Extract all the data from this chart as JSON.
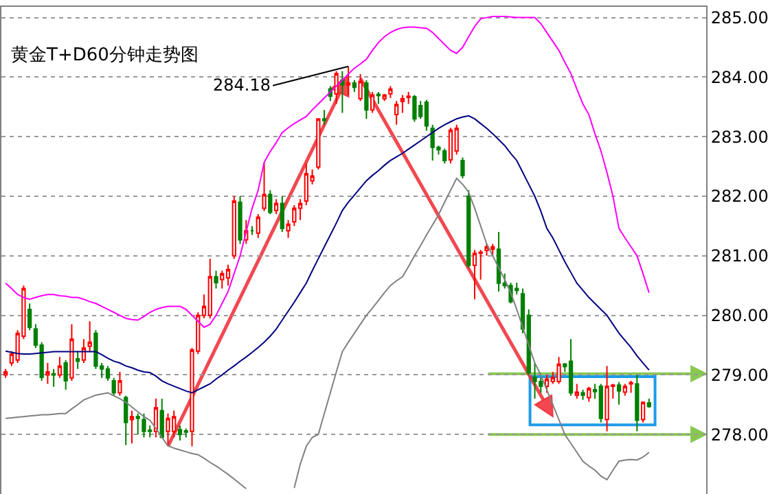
{
  "chart_data": {
    "type": "candlestick",
    "title": "黄金T+D60分钟走势图",
    "categories": [
      null,
      null,
      null,
      null,
      null,
      null,
      null,
      null,
      null,
      null,
      null,
      null,
      null,
      null,
      null,
      null,
      null,
      null,
      null,
      null,
      null,
      null,
      null,
      null,
      null,
      null,
      null,
      null,
      null,
      null,
      null,
      null,
      null,
      null,
      null,
      null,
      null,
      null,
      null,
      null,
      null,
      null,
      null,
      null,
      null,
      null,
      null,
      null,
      null,
      null,
      null,
      null,
      null,
      null,
      null,
      null,
      null,
      null,
      null,
      null,
      null,
      null,
      null,
      null,
      null,
      null,
      null,
      null,
      null,
      null,
      null,
      null,
      null,
      null,
      null,
      null,
      null,
      null,
      null,
      null,
      null,
      null,
      null,
      null,
      null,
      null,
      null,
      null,
      null,
      null,
      null,
      null,
      null,
      null,
      null,
      null,
      null,
      null,
      null,
      null,
      null,
      null,
      null,
      null,
      null,
      null,
      null,
      null
    ],
    "ohlc": [
      [
        279.0,
        279.1,
        278.95,
        279.05
      ],
      [
        279.2,
        279.4,
        279.15,
        279.35
      ],
      [
        279.25,
        279.75,
        279.2,
        279.7
      ],
      [
        279.65,
        280.5,
        279.6,
        280.45
      ],
      [
        280.1,
        280.2,
        279.75,
        279.8
      ],
      [
        279.77,
        279.85,
        279.45,
        279.5
      ],
      [
        279.5,
        279.55,
        278.9,
        278.96
      ],
      [
        279.0,
        279.2,
        278.85,
        279.05
      ],
      [
        279.02,
        279.1,
        278.8,
        279.0
      ],
      [
        279.0,
        279.3,
        278.95,
        279.15
      ],
      [
        279.2,
        279.25,
        278.75,
        278.9
      ],
      [
        278.95,
        279.85,
        278.9,
        279.6
      ],
      [
        279.27,
        279.4,
        279.1,
        279.23
      ],
      [
        279.25,
        279.6,
        279.2,
        279.45
      ],
      [
        279.48,
        279.9,
        279.4,
        279.55
      ],
      [
        279.7,
        279.75,
        279.1,
        279.15
      ],
      [
        279.15,
        279.2,
        278.95,
        279.1
      ],
      [
        279.1,
        279.15,
        278.9,
        278.95
      ],
      [
        278.9,
        278.95,
        278.65,
        278.7
      ],
      [
        278.7,
        279.05,
        278.65,
        278.9
      ],
      [
        278.62,
        278.65,
        277.82,
        278.2
      ],
      [
        278.25,
        278.4,
        277.85,
        278.3
      ],
      [
        278.3,
        278.35,
        278.0,
        278.27
      ],
      [
        278.25,
        278.35,
        277.95,
        278.05
      ],
      [
        278.07,
        278.15,
        277.95,
        278.05
      ],
      [
        278.05,
        278.6,
        277.95,
        278.45
      ],
      [
        278.4,
        278.6,
        277.95,
        277.95
      ],
      [
        278.05,
        278.35,
        277.82,
        278.27
      ],
      [
        278.05,
        278.4,
        277.95,
        278.3
      ],
      [
        278.08,
        278.15,
        277.9,
        278.0
      ],
      [
        278.06,
        278.1,
        277.95,
        278.04
      ],
      [
        278.05,
        279.45,
        277.8,
        279.42
      ],
      [
        279.4,
        280.05,
        279.35,
        280.0
      ],
      [
        280.0,
        280.35,
        279.95,
        280.15
      ],
      [
        280.0,
        280.95,
        279.95,
        280.65
      ],
      [
        280.65,
        280.75,
        280.45,
        280.55
      ],
      [
        280.6,
        280.75,
        280.45,
        280.7
      ],
      [
        280.63,
        280.85,
        280.5,
        280.77
      ],
      [
        281.0,
        282.0,
        280.95,
        281.92
      ],
      [
        281.9,
        282.0,
        281.2,
        281.27
      ],
      [
        281.27,
        281.6,
        281.2,
        281.42
      ],
      [
        281.42,
        281.5,
        281.35,
        281.42
      ],
      [
        281.38,
        281.7,
        281.3,
        281.65
      ],
      [
        281.8,
        282.57,
        281.75,
        282.03
      ],
      [
        282.03,
        282.1,
        281.7,
        281.73
      ],
      [
        281.76,
        281.95,
        281.7,
        281.88
      ],
      [
        281.88,
        282.0,
        281.4,
        281.46
      ],
      [
        281.42,
        281.6,
        281.3,
        281.53
      ],
      [
        281.57,
        281.85,
        281.5,
        281.8
      ],
      [
        281.8,
        281.95,
        281.6,
        281.88
      ],
      [
        281.92,
        282.55,
        281.85,
        282.38
      ],
      [
        282.26,
        282.45,
        282.2,
        282.34
      ],
      [
        282.49,
        283.3,
        282.45,
        283.3
      ],
      [
        283.3,
        283.45,
        283.2,
        283.27
      ],
      [
        283.8,
        283.85,
        283.6,
        283.68
      ],
      [
        283.72,
        284.1,
        283.55,
        284.06
      ],
      [
        283.95,
        284.1,
        283.4,
        283.87
      ],
      [
        283.87,
        284.18,
        283.7,
        283.9
      ],
      [
        283.9,
        283.95,
        283.75,
        283.83
      ],
      [
        283.64,
        284.05,
        283.6,
        283.93
      ],
      [
        283.9,
        283.95,
        283.3,
        283.45
      ],
      [
        283.45,
        283.75,
        283.4,
        283.7
      ],
      [
        283.71,
        283.75,
        283.55,
        283.69
      ],
      [
        283.64,
        283.72,
        283.6,
        283.7
      ],
      [
        283.72,
        283.85,
        283.65,
        283.8
      ],
      [
        283.37,
        283.6,
        283.2,
        283.54
      ],
      [
        283.59,
        283.7,
        283.4,
        283.64
      ],
      [
        283.66,
        283.75,
        283.55,
        283.68
      ],
      [
        283.67,
        283.7,
        283.25,
        283.3
      ],
      [
        283.52,
        283.6,
        283.3,
        283.34
      ],
      [
        283.58,
        283.62,
        283.1,
        283.18
      ],
      [
        283.14,
        283.2,
        282.6,
        282.82
      ],
      [
        282.82,
        282.85,
        282.7,
        282.78
      ],
      [
        282.76,
        282.8,
        282.55,
        282.6
      ],
      [
        282.61,
        283.15,
        282.55,
        283.11
      ],
      [
        282.76,
        283.2,
        282.7,
        283.14
      ],
      [
        282.6,
        282.65,
        282.3,
        282.35
      ],
      [
        282.0,
        282.1,
        280.8,
        280.84
      ],
      [
        280.84,
        281.1,
        280.27,
        281.04
      ],
      [
        281.04,
        281.1,
        280.6,
        281.06
      ],
      [
        281.09,
        281.2,
        281.0,
        281.15
      ],
      [
        281.11,
        281.2,
        281.0,
        281.15
      ],
      [
        281.11,
        281.4,
        280.4,
        280.54
      ],
      [
        280.54,
        280.7,
        280.45,
        280.5
      ],
      [
        280.5,
        280.55,
        280.2,
        280.23
      ],
      [
        280.45,
        280.55,
        280.35,
        280.42
      ],
      [
        280.36,
        280.45,
        279.7,
        279.77
      ],
      [
        280.0,
        280.1,
        279.0,
        279.04
      ],
      [
        278.96,
        279.2,
        278.6,
        278.89
      ],
      [
        278.89,
        278.95,
        278.7,
        278.81
      ],
      [
        278.81,
        279.0,
        278.7,
        278.93
      ],
      [
        278.89,
        279.05,
        278.85,
        278.96
      ],
      [
        278.89,
        279.3,
        278.85,
        279.18
      ],
      [
        279.18,
        279.2,
        279.05,
        279.14
      ],
      [
        279.23,
        279.6,
        278.65,
        278.7
      ],
      [
        278.66,
        278.85,
        278.6,
        278.71
      ],
      [
        278.7,
        278.75,
        278.58,
        278.66
      ],
      [
        278.62,
        278.8,
        278.55,
        278.77
      ],
      [
        278.75,
        278.85,
        278.6,
        278.72
      ],
      [
        278.81,
        278.85,
        278.2,
        278.27
      ],
      [
        278.25,
        279.15,
        278.05,
        278.81
      ],
      [
        278.81,
        278.85,
        278.6,
        278.83
      ],
      [
        278.83,
        278.88,
        278.5,
        278.73
      ],
      [
        278.71,
        278.85,
        278.65,
        278.81
      ],
      [
        278.85,
        278.9,
        278.7,
        278.87
      ],
      [
        278.85,
        279.0,
        278.05,
        278.24
      ],
      [
        278.25,
        278.55,
        278.2,
        278.54
      ],
      [
        278.53,
        278.6,
        278.45,
        278.47
      ]
    ],
    "colors": [
      "#ff0000",
      "#ff0000",
      "#ff0000",
      "#ff0000",
      "#008000",
      "#008000",
      "#008000",
      "#ff0000",
      "#008000",
      "#ff0000",
      "#008000",
      "#ff0000",
      "#008000",
      "#ff0000",
      "#ff0000",
      "#008000",
      "#008000",
      "#008000",
      "#008000",
      "#ff0000",
      "#008000",
      "#ff0000",
      "#008000",
      "#008000",
      "#008000",
      "#ff0000",
      "#008000",
      "#ff0000",
      "#ff0000",
      "#008000",
      "#008000",
      "#ff0000",
      "#ff0000",
      "#ff0000",
      "#ff0000",
      "#008000",
      "#ff0000",
      "#ff0000",
      "#ff0000",
      "#008000",
      "#ff0000",
      "#008000",
      "#ff0000",
      "#ff0000",
      "#008000",
      "#ff0000",
      "#008000",
      "#ff0000",
      "#ff0000",
      "#ff0000",
      "#ff0000",
      "#ff0000",
      "#ff0000",
      "#008000",
      "#008000",
      "#ff0000",
      "#008000",
      "#ff0000",
      "#008000",
      "#ff0000",
      "#008000",
      "#ff0000",
      "#008000",
      "#ff0000",
      "#ff0000",
      "#ff0000",
      "#ff0000",
      "#ff0000",
      "#008000",
      "#008000",
      "#008000",
      "#008000",
      "#008000",
      "#008000",
      "#ff0000",
      "#ff0000",
      "#008000",
      "#008000",
      "#ff0000",
      "#ff0000",
      "#ff0000",
      "#ff0000",
      "#008000",
      "#008000",
      "#008000",
      "#008000",
      "#008000",
      "#008000",
      "#008000",
      "#008000",
      "#ff0000",
      "#ff0000",
      "#ff0000",
      "#008000",
      "#008000",
      "#ff0000",
      "#008000",
      "#ff0000",
      "#008000",
      "#008000",
      "#ff0000",
      "#ff0000",
      "#008000",
      "#ff0000",
      "#ff0000",
      "#008000",
      "#ff0000",
      "#008000"
    ],
    "series": [
      {
        "type": "line",
        "color": "#ff00ff",
        "values": [
          280.54,
          280.45,
          280.35,
          280.3,
          280.27,
          280.3,
          280.33,
          280.35,
          280.35,
          280.33,
          280.32,
          280.3,
          280.3,
          280.27,
          280.23,
          280.2,
          280.15,
          280.1,
          280.05,
          280.0,
          279.95,
          279.93,
          279.92,
          279.98,
          280.05,
          280.1,
          280.13,
          280.15,
          280.15,
          280.15,
          280.1,
          280.0,
          279.9,
          279.8,
          279.85,
          280.0,
          280.2,
          280.4,
          280.7,
          281.0,
          281.4,
          281.8,
          282.1,
          282.57,
          282.75,
          282.9,
          283.07,
          283.15,
          283.22,
          283.28,
          283.34,
          283.45,
          283.55,
          283.65,
          283.75,
          283.85,
          283.95,
          284.05,
          284.15,
          284.22,
          284.3,
          284.45,
          284.58,
          284.68,
          284.75,
          284.8,
          284.83,
          284.84,
          284.84,
          284.83,
          284.82,
          284.75,
          284.65,
          284.55,
          284.45,
          284.4,
          284.5,
          284.68,
          284.85,
          284.98,
          285.0,
          285.02,
          285.02,
          285.02,
          285.01,
          285.0,
          285.0,
          285.0,
          285.0,
          284.9,
          284.75,
          284.6,
          284.45,
          284.25,
          284.06,
          283.8,
          283.55,
          283.37,
          283.05,
          282.76,
          282.4,
          282.0,
          281.46,
          281.3,
          281.15,
          281.0,
          280.7,
          280.38
        ]
      },
      {
        "type": "line",
        "color": "#000080",
        "values": [
          279.4,
          279.38,
          279.36,
          279.35,
          279.35,
          279.36,
          279.37,
          279.38,
          279.39,
          279.39,
          279.39,
          279.39,
          279.39,
          279.39,
          279.39,
          279.39,
          279.34,
          279.28,
          279.23,
          279.2,
          279.15,
          279.12,
          279.08,
          279.05,
          279.04,
          278.98,
          278.9,
          278.85,
          278.81,
          278.77,
          278.73,
          278.7,
          278.75,
          278.8,
          278.85,
          278.93,
          279.0,
          279.08,
          279.15,
          279.23,
          279.3,
          279.38,
          279.46,
          279.55,
          279.65,
          279.77,
          279.92,
          280.07,
          280.22,
          280.38,
          280.54,
          280.75,
          280.95,
          281.15,
          281.35,
          281.55,
          281.76,
          281.9,
          282.02,
          282.14,
          282.26,
          282.35,
          282.43,
          282.52,
          282.6,
          282.66,
          282.72,
          282.79,
          282.86,
          282.93,
          283.0,
          283.07,
          283.14,
          283.2,
          283.25,
          283.3,
          283.33,
          283.35,
          283.3,
          283.22,
          283.14,
          283.05,
          282.95,
          282.85,
          282.72,
          282.6,
          282.4,
          282.2,
          282.0,
          281.75,
          281.46,
          281.3,
          281.1,
          280.9,
          280.72,
          280.54,
          280.42,
          280.3,
          280.2,
          280.1,
          280.0,
          279.85,
          279.7,
          279.58,
          279.46,
          279.32,
          279.2,
          279.08
        ]
      },
      {
        "type": "line",
        "color": "#808080",
        "values": [
          278.27,
          278.28,
          278.29,
          278.3,
          278.31,
          278.32,
          278.33,
          278.33,
          278.34,
          278.35,
          278.35,
          278.43,
          278.5,
          278.58,
          278.62,
          278.66,
          278.68,
          278.7,
          278.65,
          278.6,
          278.54,
          278.46,
          278.38,
          278.3,
          278.24,
          278.1,
          277.95,
          277.81,
          277.77,
          277.74,
          277.71,
          277.68,
          277.66,
          277.6,
          277.53,
          277.47,
          277.4,
          277.33,
          277.25,
          277.17,
          277.09,
          null,
          null,
          null,
          null,
          null,
          null,
          null,
          277.1,
          277.5,
          277.8,
          277.95,
          278.0,
          278.35,
          278.7,
          279.05,
          279.39,
          279.55,
          279.7,
          279.85,
          280.0,
          280.12,
          280.25,
          280.38,
          280.5,
          280.58,
          280.65,
          280.82,
          281.0,
          281.17,
          281.35,
          281.52,
          281.69,
          281.9,
          282.1,
          282.3,
          282.2,
          282.07,
          281.8,
          281.5,
          281.2,
          281.0,
          280.8,
          280.6,
          280.38,
          280.1,
          279.8,
          279.5,
          279.2,
          279.0,
          278.75,
          278.5,
          278.25,
          278.0,
          277.85,
          277.7,
          277.55,
          277.47,
          277.4,
          277.3,
          277.24,
          277.4,
          277.55,
          277.57,
          277.58,
          277.57,
          277.62,
          277.7
        ]
      }
    ],
    "annotations": [
      "284.18"
    ],
    "ref_lines": [
      {
        "axis": "y",
        "value": 279.02,
        "color": "#88c850"
      },
      {
        "axis": "y",
        "value": 278.0,
        "color": "#88c850"
      }
    ],
    "ylim": [
      277.0,
      285.18
    ],
    "yticks": [
      {
        "value": 278,
        "label": "278.00"
      },
      {
        "value": 279,
        "label": "279.00"
      },
      {
        "value": 280,
        "label": "280.00"
      },
      {
        "value": 281,
        "label": "281.00"
      },
      {
        "value": 282,
        "label": "282.00"
      },
      {
        "value": 283,
        "label": "283.00"
      },
      {
        "value": 284,
        "label": "284.00"
      },
      {
        "value": 285,
        "label": "285.00"
      }
    ],
    "grid": "y",
    "tick_labels": "y"
  }
}
